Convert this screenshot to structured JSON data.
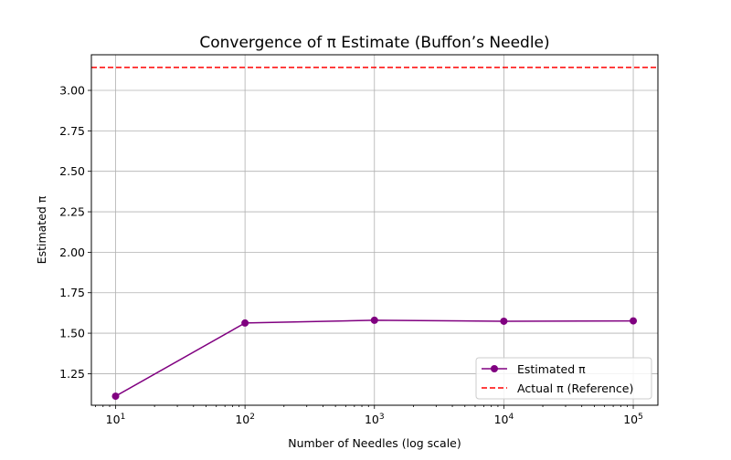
{
  "chart_data": {
    "type": "line",
    "title": "Convergence of π Estimate (Buffon’s Needle)",
    "xlabel": "Number of Needles (log scale)",
    "ylabel": "Estimated π",
    "xscale": "log",
    "xlim": [
      6.5,
      155000
    ],
    "ylim": [
      1.055,
      3.22
    ],
    "grid": true,
    "legend_position": "lower-right",
    "x_ticks": [
      {
        "value": 10,
        "base": "10",
        "exp": "1"
      },
      {
        "value": 100,
        "base": "10",
        "exp": "2"
      },
      {
        "value": 1000,
        "base": "10",
        "exp": "3"
      },
      {
        "value": 10000,
        "base": "10",
        "exp": "4"
      },
      {
        "value": 100000,
        "base": "10",
        "exp": "5"
      }
    ],
    "y_ticks": [
      {
        "value": 1.25,
        "label": "1.25"
      },
      {
        "value": 1.5,
        "label": "1.50"
      },
      {
        "value": 1.75,
        "label": "1.75"
      },
      {
        "value": 2.0,
        "label": "2.00"
      },
      {
        "value": 2.25,
        "label": "2.25"
      },
      {
        "value": 2.5,
        "label": "2.50"
      },
      {
        "value": 2.75,
        "label": "2.75"
      },
      {
        "value": 3.0,
        "label": "3.00"
      }
    ],
    "series": [
      {
        "name": "Estimated π",
        "color": "#800080",
        "style": "line-marker",
        "x": [
          10,
          100,
          1000,
          10000,
          100000
        ],
        "y": [
          1.111,
          1.563,
          1.58,
          1.574,
          1.576
        ]
      }
    ],
    "reference_lines": [
      {
        "name": "Actual π (Reference)",
        "value": 3.14159,
        "color": "#ff0000",
        "style": "dashed"
      }
    ]
  }
}
